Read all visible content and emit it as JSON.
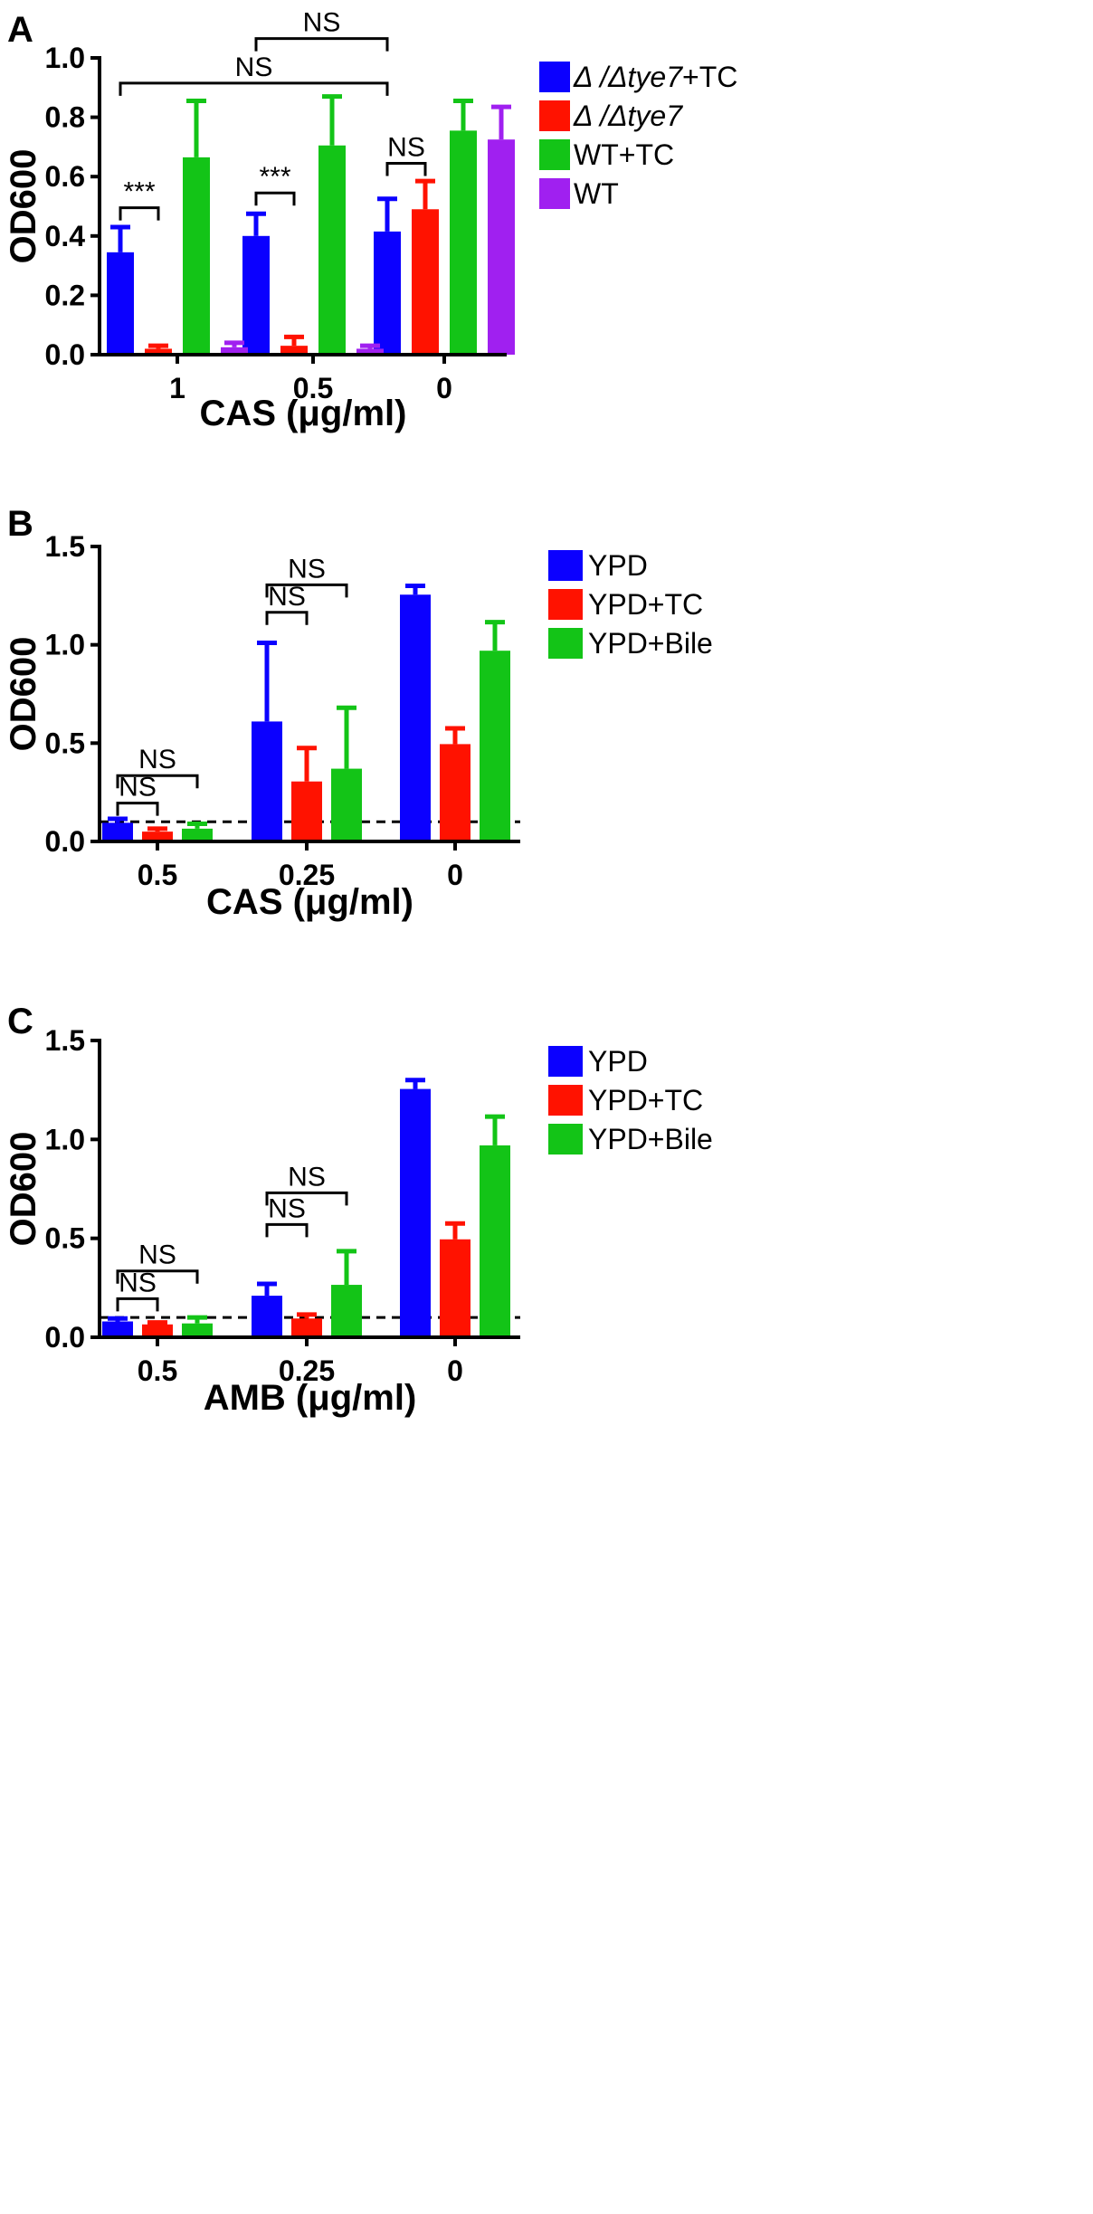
{
  "colors": {
    "blue": "#0b00ff",
    "red": "#ff1200",
    "green": "#13c417",
    "purple": "#a020f0",
    "black": "#000000"
  },
  "chart_data": [
    {
      "panel": "A",
      "type": "bar",
      "title": "",
      "xlabel": "CAS (μg/ml)",
      "ylabel": "OD600",
      "ylim": [
        0,
        1.0
      ],
      "yticks": [
        "0.0",
        "0.2",
        "0.4",
        "0.6",
        "0.8",
        "1.0"
      ],
      "categories": [
        "1",
        "0.5",
        "0"
      ],
      "series": [
        {
          "name": "Δ/Δtye7+TC",
          "legend_parts": [
            {
              "t": "Δ /Δ",
              "i": true
            },
            {
              "t": "tye7",
              "i": true
            },
            {
              "t": "+TC",
              "i": false
            }
          ],
          "color": "#0b00ff",
          "values": [
            0.345,
            0.4,
            0.415
          ],
          "errors": [
            0.085,
            0.075,
            0.11
          ]
        },
        {
          "name": "Δ/Δtye7",
          "legend_parts": [
            {
              "t": "Δ /Δ",
              "i": true
            },
            {
              "t": "tye7",
              "i": true
            }
          ],
          "color": "#ff1200",
          "values": [
            0.02,
            0.03,
            0.49
          ],
          "errors": [
            0.01,
            0.03,
            0.095
          ]
        },
        {
          "name": "WT+TC",
          "legend_parts": [
            {
              "t": "WT+TC",
              "i": false
            }
          ],
          "color": "#13c417",
          "values": [
            0.665,
            0.705,
            0.755
          ],
          "errors": [
            0.19,
            0.165,
            0.1
          ]
        },
        {
          "name": "WT",
          "legend_parts": [
            {
              "t": "WT",
              "i": false
            }
          ],
          "color": "#a020f0",
          "values": [
            0.025,
            0.02,
            0.725
          ],
          "errors": [
            0.015,
            0.01,
            0.11
          ]
        }
      ],
      "significance": [
        {
          "label": "***",
          "cat": 0,
          "from": 0,
          "to": 1,
          "y": 0.495
        },
        {
          "label": "***",
          "cat": 1,
          "from": 0,
          "to": 1,
          "y": 0.545
        },
        {
          "label": "NS",
          "cat": 2,
          "from": 0,
          "to": 1,
          "y": 0.645
        },
        {
          "label": "NS",
          "from_cat": 0,
          "to_cat": 2,
          "series": 0,
          "y": 0.915
        },
        {
          "label": "NS",
          "from_cat": 1,
          "to_cat": 2,
          "series": 0,
          "y": 1.065
        }
      ],
      "threshold": null
    },
    {
      "panel": "B",
      "type": "bar",
      "title": "",
      "xlabel": "CAS (μg/ml)",
      "ylabel": "OD600",
      "ylim": [
        0,
        1.5
      ],
      "yticks": [
        "0.0",
        "0.5",
        "1.0",
        "1.5"
      ],
      "categories": [
        "0.5",
        "0.25",
        "0"
      ],
      "series": [
        {
          "name": "YPD",
          "legend_parts": [
            {
              "t": "YPD",
              "i": false
            }
          ],
          "color": "#0b00ff",
          "values": [
            0.095,
            0.61,
            1.255
          ],
          "errors": [
            0.02,
            0.4,
            0.045
          ]
        },
        {
          "name": "YPD+TC",
          "legend_parts": [
            {
              "t": "YPD+TC",
              "i": false
            }
          ],
          "color": "#ff1200",
          "values": [
            0.05,
            0.305,
            0.495
          ],
          "errors": [
            0.015,
            0.17,
            0.08
          ]
        },
        {
          "name": "YPD+Bile",
          "legend_parts": [
            {
              "t": "YPD+Bile",
              "i": false
            }
          ],
          "color": "#13c417",
          "values": [
            0.065,
            0.37,
            0.97
          ],
          "errors": [
            0.025,
            0.31,
            0.145
          ]
        }
      ],
      "significance": [
        {
          "label": "NS",
          "cat": 0,
          "from": 0,
          "to": 1,
          "y": 0.195
        },
        {
          "label": "NS",
          "cat": 0,
          "from": 0,
          "to": 2,
          "y": 0.335
        },
        {
          "label": "NS",
          "cat": 1,
          "from": 0,
          "to": 1,
          "y": 1.165
        },
        {
          "label": "NS",
          "cat": 1,
          "from": 0,
          "to": 2,
          "y": 1.305
        }
      ],
      "threshold": 0.1
    },
    {
      "panel": "C",
      "type": "bar",
      "title": "",
      "xlabel": "AMB (μg/ml)",
      "ylabel": "OD600",
      "ylim": [
        0,
        1.5
      ],
      "yticks": [
        "0.0",
        "0.5",
        "1.0",
        "1.5"
      ],
      "categories": [
        "0.5",
        "0.25",
        "0"
      ],
      "series": [
        {
          "name": "YPD",
          "legend_parts": [
            {
              "t": "YPD",
              "i": false
            }
          ],
          "color": "#0b00ff",
          "values": [
            0.08,
            0.21,
            1.255
          ],
          "errors": [
            0.015,
            0.06,
            0.045
          ]
        },
        {
          "name": "YPD+TC",
          "legend_parts": [
            {
              "t": "YPD+TC",
              "i": false
            }
          ],
          "color": "#ff1200",
          "values": [
            0.065,
            0.095,
            0.495
          ],
          "errors": [
            0.01,
            0.02,
            0.08
          ]
        },
        {
          "name": "YPD+Bile",
          "legend_parts": [
            {
              "t": "YPD+Bile",
              "i": false
            }
          ],
          "color": "#13c417",
          "values": [
            0.07,
            0.265,
            0.97
          ],
          "errors": [
            0.03,
            0.17,
            0.145
          ]
        }
      ],
      "significance": [
        {
          "label": "NS",
          "cat": 0,
          "from": 0,
          "to": 1,
          "y": 0.195
        },
        {
          "label": "NS",
          "cat": 0,
          "from": 0,
          "to": 2,
          "y": 0.335
        },
        {
          "label": "NS",
          "cat": 1,
          "from": 0,
          "to": 1,
          "y": 0.57
        },
        {
          "label": "NS",
          "cat": 1,
          "from": 0,
          "to": 2,
          "y": 0.73
        }
      ],
      "threshold": 0.1
    }
  ]
}
